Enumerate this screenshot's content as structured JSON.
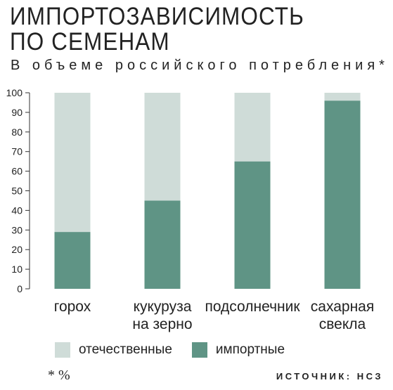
{
  "header": {
    "title": "ИМПОРТОЗАВИСИМОСТЬ\nПО СЕМЕНАМ",
    "subtitle": "В объеме российского потребления*"
  },
  "legend": [
    {
      "label": "отечественные",
      "color": "#cfdcd8"
    },
    {
      "label": "импортные",
      "color": "#5f9485"
    }
  ],
  "footnote": "* %",
  "source": "ИСТОЧНИК: НСЗ",
  "chart_data": {
    "type": "bar",
    "stacked": true,
    "categories": [
      "горох",
      "кукуруза\nна зерно",
      "подсолнечник",
      "сахарная\nсвекла"
    ],
    "series": [
      {
        "name": "импортные",
        "values": [
          29,
          45,
          65,
          96
        ],
        "color": "#5f9485"
      },
      {
        "name": "отечественные",
        "values": [
          71,
          55,
          35,
          4
        ],
        "color": "#cfdcd8"
      }
    ],
    "ylim": [
      0,
      100
    ],
    "yticks": [
      0,
      10,
      20,
      30,
      40,
      50,
      60,
      70,
      80,
      90,
      100
    ],
    "grid": false,
    "legend_position": "bottom"
  }
}
